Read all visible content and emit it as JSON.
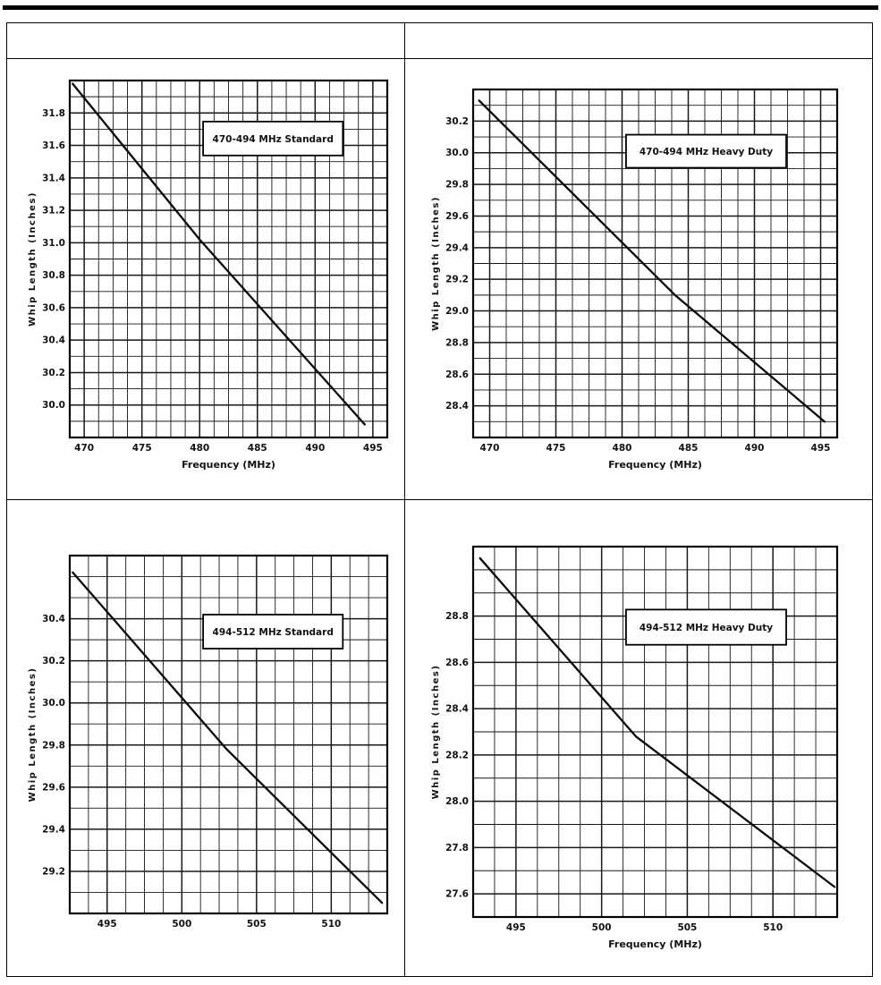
{
  "page": {
    "background_color": "#ffffff",
    "rule_color": "#000000",
    "table_border_color": "#000000"
  },
  "chart_data": [
    {
      "type": "line",
      "title": "470-494 MHz Standard",
      "xlabel": "Frequency (MHz)",
      "ylabel": "Whip Length (Inches)",
      "x_ticks": [
        470,
        475,
        480,
        485,
        490,
        495
      ],
      "y_ticks": [
        30.0,
        30.2,
        30.4,
        30.6,
        30.8,
        31.0,
        31.2,
        31.4,
        31.6,
        31.8
      ],
      "xlim": [
        468.75,
        496.25
      ],
      "ylim": [
        29.8,
        32.0
      ],
      "x_minor_step": 1.25,
      "y_minor_step": 0.1,
      "grid": true,
      "legend": "none",
      "points": [
        [
          469.0,
          31.98
        ],
        [
          480.0,
          31.02
        ],
        [
          494.3,
          29.88
        ]
      ]
    },
    {
      "type": "line",
      "title": "470-494 MHz Heavy Duty",
      "xlabel": "Frequency (MHz)",
      "ylabel": "Whip Length (Inches)",
      "x_ticks": [
        470,
        475,
        480,
        485,
        490,
        495
      ],
      "y_ticks": [
        28.4,
        28.6,
        28.8,
        29.0,
        29.2,
        29.4,
        29.6,
        29.8,
        30.0,
        30.2
      ],
      "xlim": [
        468.75,
        496.25
      ],
      "ylim": [
        28.2,
        30.4
      ],
      "x_minor_step": 1.25,
      "y_minor_step": 0.1,
      "grid": true,
      "legend": "none",
      "points": [
        [
          469.2,
          30.33
        ],
        [
          484.0,
          29.1
        ],
        [
          495.3,
          28.3
        ]
      ]
    },
    {
      "type": "line",
      "title": "494-512 MHz Standard",
      "xlabel": "",
      "ylabel": "Whip Length (Inches)",
      "x_ticks": [
        495,
        500,
        505,
        510
      ],
      "y_ticks": [
        29.2,
        29.4,
        29.6,
        29.8,
        30.0,
        30.2,
        30.4
      ],
      "xlim": [
        492.5,
        513.75
      ],
      "ylim": [
        29.0,
        30.7
      ],
      "x_minor_step": 1.25,
      "y_minor_step": 0.1,
      "grid": true,
      "legend": "none",
      "points": [
        [
          492.7,
          30.62
        ],
        [
          503.0,
          29.78
        ],
        [
          513.4,
          29.05
        ]
      ]
    },
    {
      "type": "line",
      "title": "494-512 MHz Heavy Duty",
      "xlabel": "Frequency (MHz)",
      "ylabel": "Whip Length (Inches)",
      "x_ticks": [
        495,
        500,
        505,
        510
      ],
      "y_ticks": [
        27.6,
        27.8,
        28.0,
        28.2,
        28.4,
        28.6,
        28.8
      ],
      "xlim": [
        492.5,
        513.75
      ],
      "ylim": [
        27.5,
        29.1
      ],
      "x_minor_step": 1.25,
      "y_minor_step": 0.1,
      "grid": true,
      "legend": "none",
      "points": [
        [
          492.9,
          29.05
        ],
        [
          502.0,
          28.28
        ],
        [
          513.6,
          27.63
        ]
      ]
    }
  ]
}
